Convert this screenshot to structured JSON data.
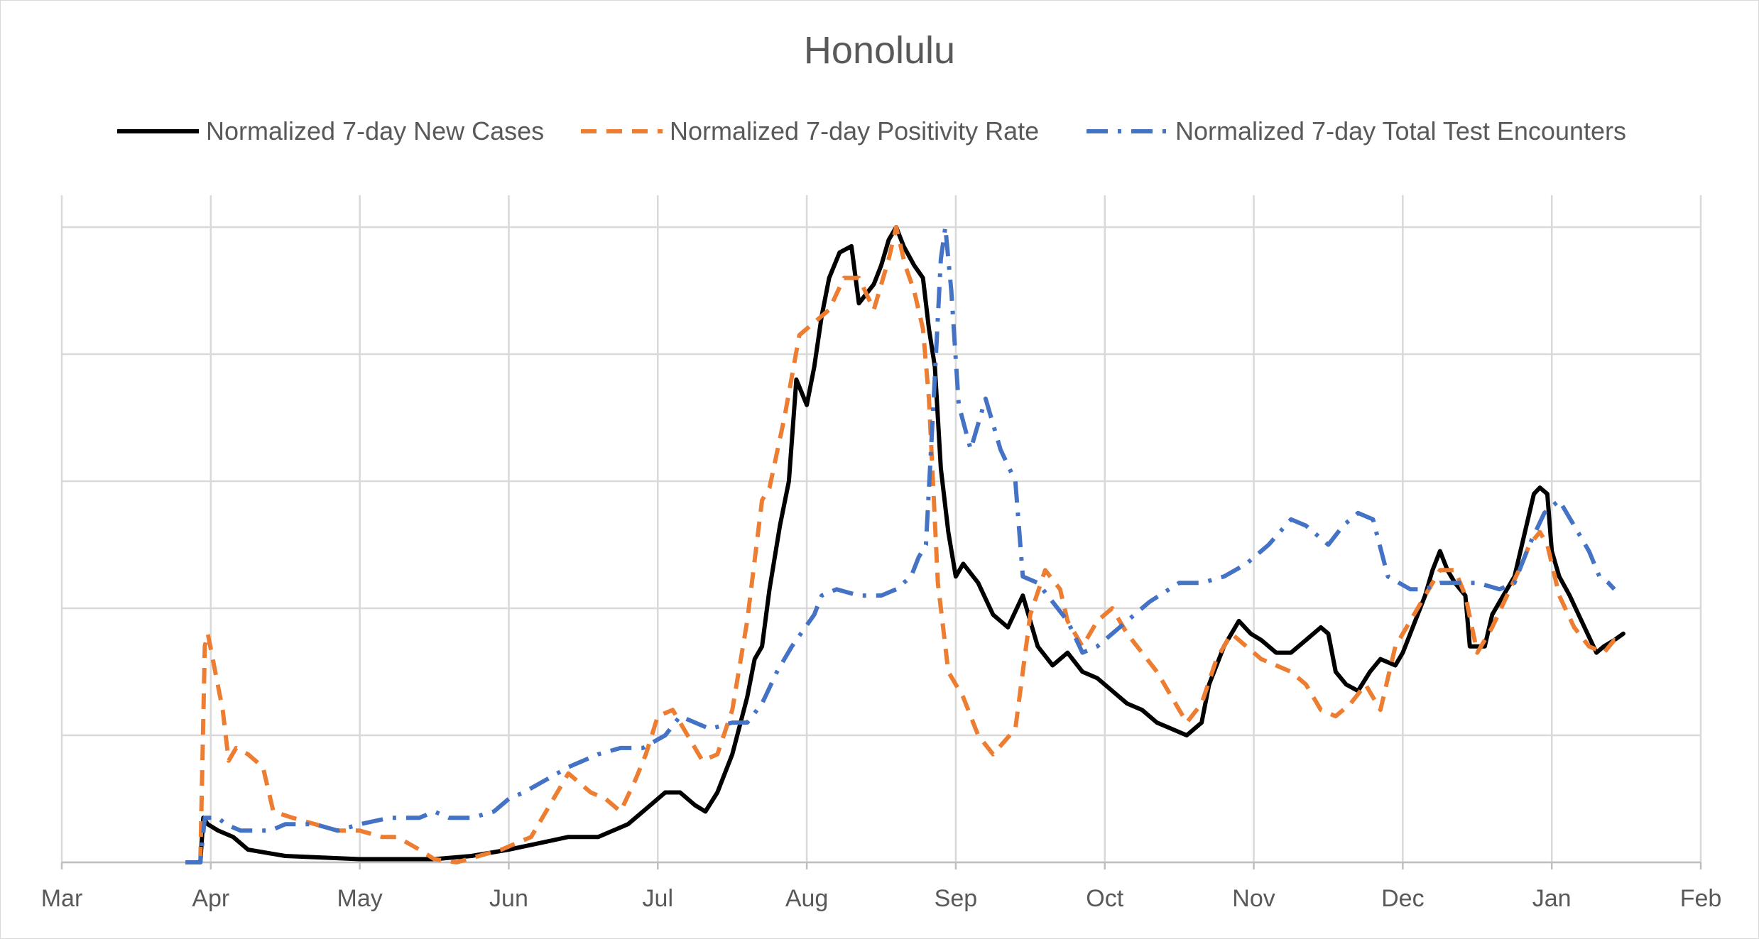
{
  "chart_data": {
    "type": "line",
    "title": "Honolulu",
    "xlabel": "",
    "ylabel": "",
    "x_ticks": [
      "Mar",
      "Apr",
      "May",
      "Jun",
      "Jul",
      "Aug",
      "Sep",
      "Oct",
      "Nov",
      "Dec",
      "Jan",
      "Feb"
    ],
    "xlim": [
      "Mar",
      "Feb"
    ],
    "ylim": [
      0,
      1
    ],
    "y_gridlines": [
      0,
      0.2,
      0.4,
      0.6,
      0.8,
      1.0
    ],
    "y_tick_labels_shown": false,
    "grid": true,
    "legend_position": "top",
    "x_unit": "months since Mar 1",
    "series": [
      {
        "name": "Normalized 7-day New Cases",
        "color": "#000000",
        "style": "solid",
        "points": [
          [
            0.93,
            0
          ],
          [
            0.95,
            0.07
          ],
          [
            0.98,
            0.06
          ],
          [
            1.05,
            0.05
          ],
          [
            1.15,
            0.04
          ],
          [
            1.25,
            0.02
          ],
          [
            1.5,
            0.01
          ],
          [
            2.0,
            0.005
          ],
          [
            2.5,
            0.005
          ],
          [
            2.75,
            0.01
          ],
          [
            3.0,
            0.02
          ],
          [
            3.2,
            0.03
          ],
          [
            3.4,
            0.04
          ],
          [
            3.6,
            0.04
          ],
          [
            3.8,
            0.06
          ],
          [
            3.95,
            0.09
          ],
          [
            4.05,
            0.11
          ],
          [
            4.15,
            0.11
          ],
          [
            4.25,
            0.09
          ],
          [
            4.32,
            0.08
          ],
          [
            4.4,
            0.11
          ],
          [
            4.5,
            0.17
          ],
          [
            4.6,
            0.26
          ],
          [
            4.65,
            0.32
          ],
          [
            4.7,
            0.34
          ],
          [
            4.75,
            0.43
          ],
          [
            4.82,
            0.53
          ],
          [
            4.88,
            0.6
          ],
          [
            4.93,
            0.76
          ],
          [
            5.0,
            0.72
          ],
          [
            5.05,
            0.78
          ],
          [
            5.1,
            0.86
          ],
          [
            5.15,
            0.92
          ],
          [
            5.22,
            0.96
          ],
          [
            5.3,
            0.97
          ],
          [
            5.35,
            0.88
          ],
          [
            5.45,
            0.91
          ],
          [
            5.5,
            0.94
          ],
          [
            5.55,
            0.98
          ],
          [
            5.6,
            1.0
          ],
          [
            5.65,
            0.97
          ],
          [
            5.72,
            0.94
          ],
          [
            5.78,
            0.92
          ],
          [
            5.82,
            0.84
          ],
          [
            5.86,
            0.78
          ],
          [
            5.9,
            0.62
          ],
          [
            5.95,
            0.52
          ],
          [
            6.0,
            0.45
          ],
          [
            6.05,
            0.47
          ],
          [
            6.15,
            0.44
          ],
          [
            6.25,
            0.39
          ],
          [
            6.35,
            0.37
          ],
          [
            6.45,
            0.42
          ],
          [
            6.55,
            0.34
          ],
          [
            6.65,
            0.31
          ],
          [
            6.75,
            0.33
          ],
          [
            6.85,
            0.3
          ],
          [
            6.95,
            0.29
          ],
          [
            7.05,
            0.27
          ],
          [
            7.15,
            0.25
          ],
          [
            7.25,
            0.24
          ],
          [
            7.35,
            0.22
          ],
          [
            7.45,
            0.21
          ],
          [
            7.55,
            0.2
          ],
          [
            7.65,
            0.22
          ],
          [
            7.7,
            0.28
          ],
          [
            7.8,
            0.34
          ],
          [
            7.9,
            0.38
          ],
          [
            7.98,
            0.36
          ],
          [
            8.05,
            0.35
          ],
          [
            8.15,
            0.33
          ],
          [
            8.25,
            0.33
          ],
          [
            8.35,
            0.35
          ],
          [
            8.45,
            0.37
          ],
          [
            8.5,
            0.36
          ],
          [
            8.55,
            0.3
          ],
          [
            8.62,
            0.28
          ],
          [
            8.7,
            0.27
          ],
          [
            8.78,
            0.3
          ],
          [
            8.85,
            0.32
          ],
          [
            8.95,
            0.31
          ],
          [
            9.0,
            0.33
          ],
          [
            9.05,
            0.36
          ],
          [
            9.15,
            0.42
          ],
          [
            9.2,
            0.46
          ],
          [
            9.25,
            0.49
          ],
          [
            9.3,
            0.46
          ],
          [
            9.35,
            0.44
          ],
          [
            9.42,
            0.42
          ],
          [
            9.45,
            0.34
          ],
          [
            9.55,
            0.34
          ],
          [
            9.6,
            0.39
          ],
          [
            9.65,
            0.41
          ],
          [
            9.75,
            0.45
          ],
          [
            9.82,
            0.52
          ],
          [
            9.88,
            0.58
          ],
          [
            9.92,
            0.59
          ],
          [
            9.97,
            0.58
          ],
          [
            10.0,
            0.49
          ],
          [
            10.05,
            0.45
          ],
          [
            10.12,
            0.42
          ],
          [
            10.2,
            0.38
          ],
          [
            10.3,
            0.33
          ],
          [
            10.35,
            0.34
          ],
          [
            10.42,
            0.35
          ],
          [
            10.48,
            0.36
          ]
        ]
      },
      {
        "name": "Normalized 7-day Positivity Rate",
        "color": "#ed7d31",
        "style": "dash",
        "points": [
          [
            0.93,
            0
          ],
          [
            0.96,
            0.34
          ],
          [
            0.98,
            0.36
          ],
          [
            1.03,
            0.3
          ],
          [
            1.08,
            0.24
          ],
          [
            1.12,
            0.16
          ],
          [
            1.17,
            0.18
          ],
          [
            1.25,
            0.17
          ],
          [
            1.35,
            0.15
          ],
          [
            1.42,
            0.08
          ],
          [
            1.55,
            0.07
          ],
          [
            1.7,
            0.06
          ],
          [
            1.85,
            0.05
          ],
          [
            2.0,
            0.05
          ],
          [
            2.15,
            0.04
          ],
          [
            2.25,
            0.04
          ],
          [
            2.4,
            0.02
          ],
          [
            2.5,
            0.005
          ],
          [
            2.65,
            0.0
          ],
          [
            2.8,
            0.01
          ],
          [
            2.95,
            0.02
          ],
          [
            3.15,
            0.04
          ],
          [
            3.3,
            0.1
          ],
          [
            3.4,
            0.14
          ],
          [
            3.5,
            0.12
          ],
          [
            3.55,
            0.11
          ],
          [
            3.65,
            0.1
          ],
          [
            3.75,
            0.08
          ],
          [
            3.85,
            0.13
          ],
          [
            3.92,
            0.17
          ],
          [
            4.0,
            0.23
          ],
          [
            4.1,
            0.24
          ],
          [
            4.2,
            0.2
          ],
          [
            4.3,
            0.16
          ],
          [
            4.4,
            0.17
          ],
          [
            4.5,
            0.24
          ],
          [
            4.6,
            0.38
          ],
          [
            4.7,
            0.57
          ],
          [
            4.75,
            0.59
          ],
          [
            4.85,
            0.7
          ],
          [
            4.95,
            0.83
          ],
          [
            5.05,
            0.85
          ],
          [
            5.15,
            0.87
          ],
          [
            5.25,
            0.92
          ],
          [
            5.35,
            0.92
          ],
          [
            5.45,
            0.87
          ],
          [
            5.55,
            0.95
          ],
          [
            5.6,
            1.0
          ],
          [
            5.66,
            0.94
          ],
          [
            5.72,
            0.9
          ],
          [
            5.78,
            0.84
          ],
          [
            5.82,
            0.73
          ],
          [
            5.88,
            0.44
          ],
          [
            5.95,
            0.3
          ],
          [
            6.05,
            0.26
          ],
          [
            6.15,
            0.2
          ],
          [
            6.25,
            0.17
          ],
          [
            6.4,
            0.21
          ],
          [
            6.5,
            0.39
          ],
          [
            6.6,
            0.46
          ],
          [
            6.7,
            0.43
          ],
          [
            6.75,
            0.38
          ],
          [
            6.85,
            0.34
          ],
          [
            6.95,
            0.38
          ],
          [
            7.05,
            0.4
          ],
          [
            7.15,
            0.36
          ],
          [
            7.25,
            0.33
          ],
          [
            7.35,
            0.3
          ],
          [
            7.45,
            0.26
          ],
          [
            7.55,
            0.22
          ],
          [
            7.65,
            0.25
          ],
          [
            7.75,
            0.32
          ],
          [
            7.85,
            0.36
          ],
          [
            7.95,
            0.34
          ],
          [
            8.05,
            0.32
          ],
          [
            8.15,
            0.31
          ],
          [
            8.25,
            0.3
          ],
          [
            8.35,
            0.28
          ],
          [
            8.45,
            0.24
          ],
          [
            8.55,
            0.23
          ],
          [
            8.65,
            0.25
          ],
          [
            8.75,
            0.28
          ],
          [
            8.85,
            0.24
          ],
          [
            8.95,
            0.34
          ],
          [
            9.05,
            0.38
          ],
          [
            9.15,
            0.42
          ],
          [
            9.25,
            0.46
          ],
          [
            9.35,
            0.46
          ],
          [
            9.42,
            0.42
          ],
          [
            9.5,
            0.33
          ],
          [
            9.6,
            0.37
          ],
          [
            9.7,
            0.42
          ],
          [
            9.8,
            0.47
          ],
          [
            9.85,
            0.5
          ],
          [
            9.92,
            0.52
          ],
          [
            9.97,
            0.5
          ],
          [
            10.05,
            0.42
          ],
          [
            10.15,
            0.37
          ],
          [
            10.25,
            0.34
          ],
          [
            10.35,
            0.33
          ],
          [
            10.42,
            0.35
          ],
          [
            10.48,
            0.35
          ]
        ]
      },
      {
        "name": "Normalized 7-day Total Test Encounters",
        "color": "#4472c4",
        "style": "dashdot",
        "points": [
          [
            0.83,
            0
          ],
          [
            0.93,
            0.0
          ],
          [
            0.96,
            0.07
          ],
          [
            1.05,
            0.07
          ],
          [
            1.1,
            0.06
          ],
          [
            1.2,
            0.05
          ],
          [
            1.4,
            0.05
          ],
          [
            1.5,
            0.06
          ],
          [
            1.7,
            0.06
          ],
          [
            1.85,
            0.05
          ],
          [
            2.0,
            0.06
          ],
          [
            2.2,
            0.07
          ],
          [
            2.4,
            0.07
          ],
          [
            2.5,
            0.08
          ],
          [
            2.6,
            0.07
          ],
          [
            2.75,
            0.07
          ],
          [
            2.9,
            0.08
          ],
          [
            3.0,
            0.1
          ],
          [
            3.1,
            0.11
          ],
          [
            3.25,
            0.13
          ],
          [
            3.4,
            0.15
          ],
          [
            3.5,
            0.16
          ],
          [
            3.6,
            0.17
          ],
          [
            3.75,
            0.18
          ],
          [
            3.9,
            0.18
          ],
          [
            4.05,
            0.2
          ],
          [
            4.15,
            0.23
          ],
          [
            4.35,
            0.21
          ],
          [
            4.5,
            0.22
          ],
          [
            4.6,
            0.22
          ],
          [
            4.7,
            0.25
          ],
          [
            4.8,
            0.3
          ],
          [
            4.9,
            0.34
          ],
          [
            5.05,
            0.39
          ],
          [
            5.1,
            0.42
          ],
          [
            5.2,
            0.43
          ],
          [
            5.35,
            0.42
          ],
          [
            5.5,
            0.42
          ],
          [
            5.6,
            0.43
          ],
          [
            5.7,
            0.45
          ],
          [
            5.75,
            0.48
          ],
          [
            5.8,
            0.5
          ],
          [
            5.85,
            0.72
          ],
          [
            5.9,
            0.95
          ],
          [
            5.93,
            1.0
          ],
          [
            5.97,
            0.9
          ],
          [
            6.02,
            0.72
          ],
          [
            6.1,
            0.65
          ],
          [
            6.2,
            0.73
          ],
          [
            6.3,
            0.65
          ],
          [
            6.4,
            0.6
          ],
          [
            6.45,
            0.45
          ],
          [
            6.55,
            0.44
          ],
          [
            6.65,
            0.41
          ],
          [
            6.75,
            0.38
          ],
          [
            6.85,
            0.33
          ],
          [
            6.95,
            0.34
          ],
          [
            7.05,
            0.36
          ],
          [
            7.15,
            0.38
          ],
          [
            7.3,
            0.41
          ],
          [
            7.5,
            0.44
          ],
          [
            7.65,
            0.44
          ],
          [
            7.8,
            0.45
          ],
          [
            7.95,
            0.47
          ],
          [
            8.1,
            0.5
          ],
          [
            8.25,
            0.54
          ],
          [
            8.35,
            0.53
          ],
          [
            8.5,
            0.5
          ],
          [
            8.6,
            0.53
          ],
          [
            8.7,
            0.55
          ],
          [
            8.8,
            0.54
          ],
          [
            8.9,
            0.45
          ],
          [
            9.05,
            0.43
          ],
          [
            9.15,
            0.43
          ],
          [
            9.25,
            0.44
          ],
          [
            9.35,
            0.44
          ],
          [
            9.5,
            0.44
          ],
          [
            9.65,
            0.43
          ],
          [
            9.75,
            0.44
          ],
          [
            9.85,
            0.5
          ],
          [
            9.95,
            0.55
          ],
          [
            10.05,
            0.57
          ],
          [
            10.15,
            0.53
          ],
          [
            10.25,
            0.49
          ],
          [
            10.32,
            0.45
          ],
          [
            10.38,
            0.44
          ],
          [
            10.42,
            0.43
          ]
        ]
      }
    ]
  }
}
